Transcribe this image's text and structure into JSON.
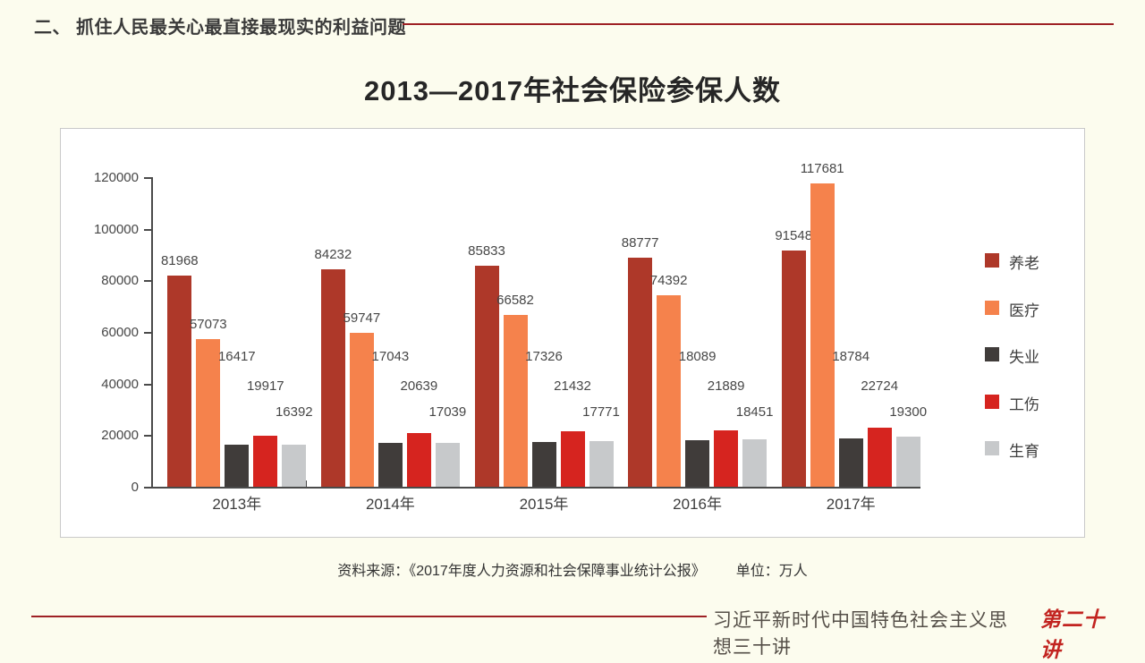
{
  "header": {
    "title": "二、 抓住人民最关心最直接最现实的利益问题"
  },
  "slide": {
    "title": "2013—2017年社会保险参保人数"
  },
  "chart_data": {
    "type": "bar",
    "title": "2013—2017年社会保险参保人数",
    "categories": [
      "2013年",
      "2014年",
      "2015年",
      "2016年",
      "2017年"
    ],
    "series": [
      {
        "name": "养老",
        "color": "#ae3829",
        "values": [
          81968,
          84232,
          85833,
          88777,
          91548
        ]
      },
      {
        "name": "医疗",
        "color": "#f5824c",
        "values": [
          57073,
          59747,
          66582,
          74392,
          117681
        ]
      },
      {
        "name": "失业",
        "color": "#403c3a",
        "values": [
          16417,
          17043,
          17326,
          18089,
          18784
        ]
      },
      {
        "name": "工伤",
        "color": "#d6241f",
        "values": [
          19917,
          20639,
          21432,
          21889,
          22724
        ]
      },
      {
        "name": "生育",
        "color": "#c7c9cb",
        "values": [
          16392,
          17039,
          17771,
          18451,
          19300
        ]
      }
    ],
    "ylim": [
      0,
      120000
    ],
    "yticks": [
      0,
      20000,
      40000,
      60000,
      80000,
      100000,
      120000
    ],
    "xlabel": "",
    "ylabel": "",
    "grid": false,
    "legend_position": "right",
    "data_labels": true,
    "unit": "万人"
  },
  "source": {
    "label": "资料来源：《2017年度人力资源和社会保障事业统计公报》",
    "unit_label": "单位：万人"
  },
  "footer": {
    "series_title": "习近平新时代中国特色社会主义思想三十讲",
    "lecture_badge": "第二十讲"
  },
  "colors": {
    "slide_background": "#fcfcee",
    "chart_background": "#ffffff",
    "accent_red_line": "#9e2125",
    "axis": "#4a4a4a",
    "badge_red": "#c22420"
  }
}
